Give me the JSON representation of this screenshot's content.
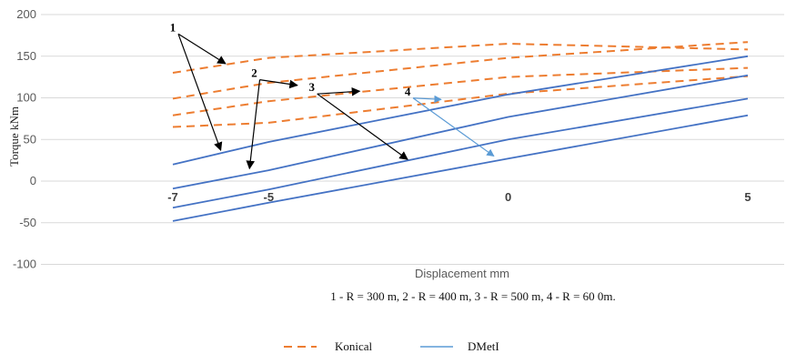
{
  "chart_data": {
    "type": "line",
    "xlabel": "Displacement mm",
    "ylabel": "Torque kNm",
    "ylim": [
      -100,
      200
    ],
    "yticks": [
      -100,
      -50,
      0,
      50,
      100,
      150,
      200
    ],
    "xticks": [
      -7,
      -5,
      0,
      5
    ],
    "xlim": [
      -7,
      5
    ],
    "grid": "horizontal",
    "caption": "1 - R = 300 m, 2 - R = 400 m, 3 - R = 500 m, 4 - R = 60 0m.",
    "legend_position": "bottom",
    "legend": [
      {
        "label": "Konical",
        "color": "#ed7d31",
        "style": "dashed"
      },
      {
        "label": "DMetI",
        "color": "#4472c4",
        "style": "solid"
      }
    ],
    "series": [
      {
        "group": "Konical",
        "x": [
          -7,
          -5,
          0,
          5
        ],
        "values": [
          130,
          148,
          165,
          158
        ]
      },
      {
        "group": "Konical",
        "x": [
          -7,
          -5,
          0,
          5
        ],
        "values": [
          99,
          118,
          148,
          167
        ]
      },
      {
        "group": "Konical",
        "x": [
          -7,
          -5,
          0,
          5
        ],
        "values": [
          79,
          96,
          125,
          136
        ]
      },
      {
        "group": "Konical",
        "x": [
          -7,
          -5,
          0,
          5
        ],
        "values": [
          65,
          70,
          105,
          126
        ]
      },
      {
        "group": "DMetI",
        "x": [
          -7,
          -5,
          0,
          5
        ],
        "values": [
          20,
          47,
          104,
          150
        ]
      },
      {
        "group": "DMetI",
        "x": [
          -7,
          -5,
          0,
          5
        ],
        "values": [
          -9,
          13,
          77,
          127
        ]
      },
      {
        "group": "DMetI",
        "x": [
          -7,
          -5,
          0,
          5
        ],
        "values": [
          -32,
          -10,
          50,
          99
        ]
      },
      {
        "group": "DMetI",
        "x": [
          -7,
          -5,
          0,
          5
        ],
        "values": [
          -48,
          -26,
          27,
          79
        ]
      }
    ],
    "annotations": [
      {
        "label": "1",
        "x": -7,
        "y": 180,
        "targets": [
          [
            -5.9,
            141
          ],
          [
            -6.0,
            37
          ]
        ]
      },
      {
        "label": "2",
        "x": -5.3,
        "y": 125,
        "targets": [
          [
            -4.4,
            115
          ],
          [
            -5.4,
            15
          ]
        ]
      },
      {
        "label": "3",
        "x": -4.1,
        "y": 108,
        "targets": [
          [
            -3.1,
            108
          ],
          [
            -2.1,
            26
          ]
        ]
      },
      {
        "label": "4",
        "x": -2.1,
        "y": 103,
        "targets": [
          [
            -1.4,
            98
          ],
          [
            -0.3,
            30
          ]
        ]
      }
    ]
  }
}
